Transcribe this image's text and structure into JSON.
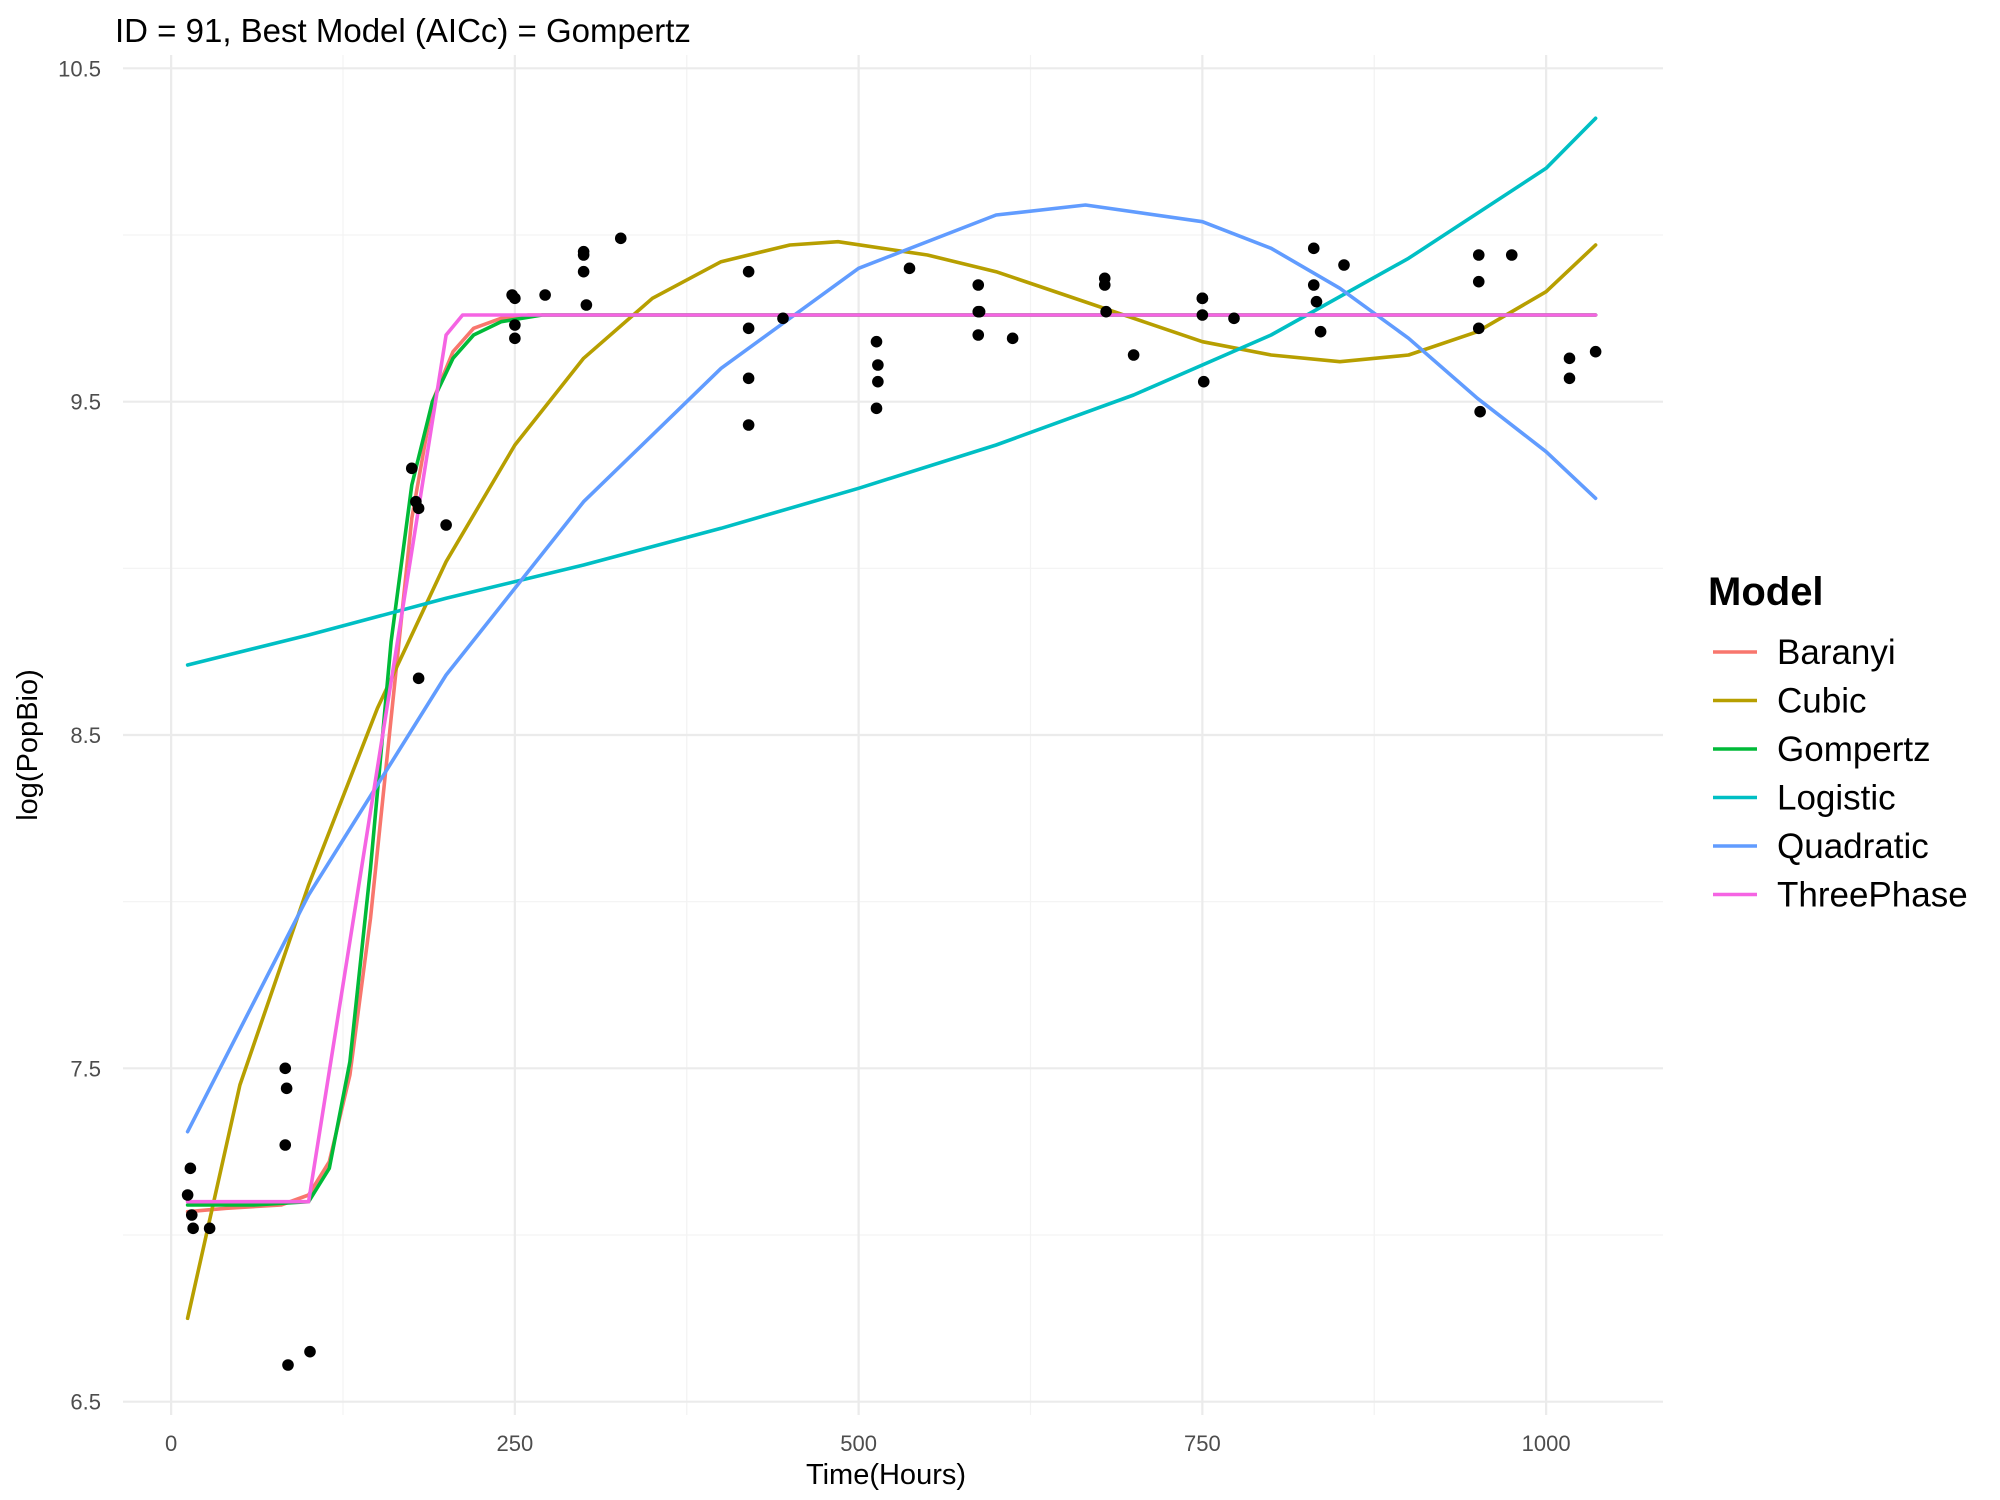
{
  "chart_data": {
    "type": "line",
    "title": "ID = 91, Best Model (AICc) = Gompertz",
    "xlabel": "Time(Hours)",
    "ylabel": "log(PopBio)",
    "xlim": [
      -35,
      1085
    ],
    "ylim": [
      6.46,
      10.54
    ],
    "x_ticks": [
      0,
      250,
      500,
      750,
      1000
    ],
    "y_ticks": [
      6.5,
      7.5,
      8.5,
      9.5,
      10.5
    ],
    "x_tick_labels": [
      "0",
      "250",
      "500",
      "750",
      "1000"
    ],
    "y_tick_labels": [
      "6.5",
      "7.5",
      "8.5",
      "9.5",
      "10.5"
    ],
    "grid": true,
    "legend_title": "Model",
    "legend_position": "right",
    "series": [
      {
        "name": "Baranyi",
        "color": "#F8766D",
        "x": [
          12,
          40,
          80,
          100,
          115,
          130,
          145,
          160,
          175,
          190,
          205,
          220,
          240,
          260,
          300,
          1036
        ],
        "y": [
          7.07,
          7.08,
          7.09,
          7.12,
          7.22,
          7.48,
          7.95,
          8.55,
          9.15,
          9.5,
          9.65,
          9.72,
          9.75,
          9.76,
          9.76,
          9.76
        ]
      },
      {
        "name": "Cubic",
        "color": "#B79F00",
        "x": [
          12,
          50,
          100,
          150,
          200,
          250,
          300,
          350,
          400,
          450,
          485,
          550,
          600,
          650,
          700,
          750,
          800,
          850,
          900,
          950,
          1000,
          1036
        ],
        "y": [
          6.75,
          7.45,
          8.05,
          8.58,
          9.02,
          9.37,
          9.63,
          9.81,
          9.92,
          9.97,
          9.98,
          9.94,
          9.89,
          9.82,
          9.75,
          9.68,
          9.64,
          9.62,
          9.64,
          9.71,
          9.83,
          9.97
        ]
      },
      {
        "name": "Gompertz",
        "color": "#00BA38",
        "x": [
          12,
          60,
          100,
          115,
          130,
          145,
          160,
          175,
          190,
          205,
          220,
          240,
          270,
          320,
          1036
        ],
        "y": [
          7.09,
          7.09,
          7.1,
          7.2,
          7.52,
          8.1,
          8.78,
          9.25,
          9.5,
          9.63,
          9.7,
          9.74,
          9.76,
          9.76,
          9.76
        ]
      },
      {
        "name": "Logistic",
        "color": "#00BFC4",
        "x": [
          12,
          100,
          200,
          300,
          400,
          500,
          600,
          700,
          800,
          900,
          1000,
          1036
        ],
        "y": [
          8.71,
          8.8,
          8.91,
          9.01,
          9.12,
          9.24,
          9.37,
          9.52,
          9.7,
          9.93,
          10.2,
          10.35
        ]
      },
      {
        "name": "Quadratic",
        "color": "#619CFF",
        "x": [
          12,
          100,
          200,
          300,
          400,
          500,
          600,
          665,
          750,
          800,
          850,
          900,
          950,
          1000,
          1036
        ],
        "y": [
          7.31,
          8.02,
          8.68,
          9.2,
          9.6,
          9.9,
          10.06,
          10.09,
          10.04,
          9.96,
          9.84,
          9.69,
          9.51,
          9.35,
          9.21
        ]
      },
      {
        "name": "ThreePhase",
        "color": "#F564E3",
        "x": [
          12,
          100,
          200,
          212,
          1036
        ],
        "y": [
          7.1,
          7.1,
          9.7,
          9.76,
          9.76
        ]
      }
    ],
    "points": {
      "color": "#000000",
      "x": [
        12,
        14,
        15,
        16,
        28,
        83,
        84,
        83,
        85,
        101,
        175,
        178,
        180,
        180,
        200,
        248,
        250,
        250,
        250,
        272,
        300,
        300,
        300,
        302,
        327,
        420,
        420,
        420,
        420,
        445,
        513,
        514,
        514,
        513,
        537,
        587,
        587,
        588,
        587,
        612,
        679,
        679,
        680,
        700,
        750,
        750,
        750,
        751,
        773,
        831,
        831,
        833,
        836,
        853,
        951,
        951,
        951,
        952,
        975,
        1017,
        1017,
        1036
      ],
      "y": [
        7.12,
        7.2,
        7.06,
        7.02,
        7.02,
        7.5,
        7.44,
        7.27,
        6.61,
        6.65,
        9.3,
        9.2,
        9.18,
        8.67,
        9.13,
        9.82,
        9.81,
        9.73,
        9.69,
        9.82,
        9.95,
        9.94,
        9.89,
        9.79,
        9.99,
        9.89,
        9.72,
        9.57,
        9.43,
        9.75,
        9.68,
        9.61,
        9.56,
        9.48,
        9.9,
        9.85,
        9.77,
        9.77,
        9.7,
        9.69,
        9.87,
        9.85,
        9.77,
        9.64,
        9.81,
        9.81,
        9.76,
        9.56,
        9.75,
        9.96,
        9.85,
        9.8,
        9.71,
        9.91,
        9.94,
        9.86,
        9.72,
        9.47,
        9.94,
        9.63,
        9.57,
        9.65
      ]
    }
  }
}
